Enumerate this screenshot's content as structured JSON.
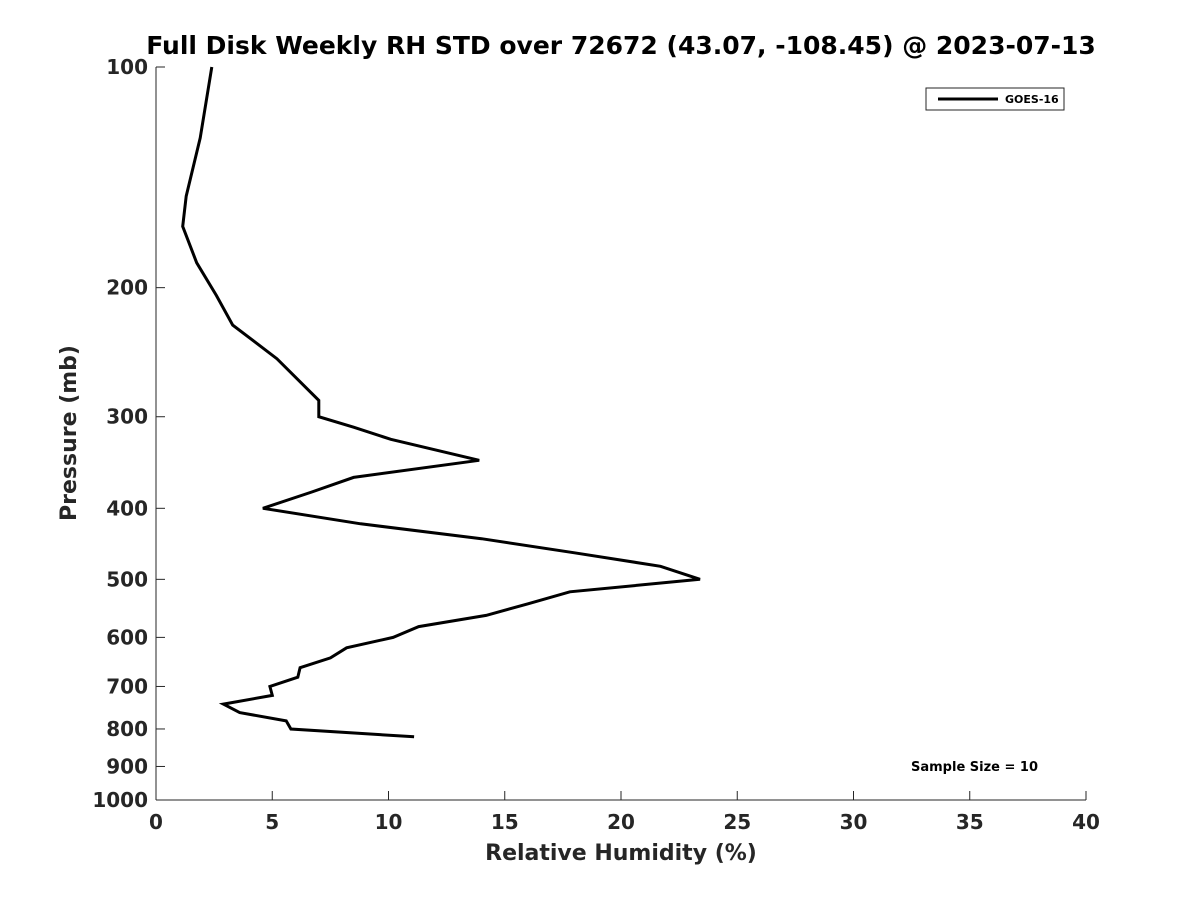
{
  "chart_data": {
    "type": "line",
    "title": "Full Disk Weekly RH STD over 72672 (43.07, -108.45) @ 2023-07-13",
    "xlabel": "Relative Humidity (%)",
    "ylabel": "Pressure (mb)",
    "xlim": [
      0,
      40
    ],
    "ylim": [
      100,
      1000
    ],
    "yscale": "log",
    "y_reversed": true,
    "x_ticks": [
      0,
      5,
      10,
      15,
      20,
      25,
      30,
      35,
      40
    ],
    "y_ticks": [
      100,
      200,
      300,
      400,
      500,
      600,
      700,
      800,
      900,
      1000
    ],
    "legend": {
      "placement": "top-right",
      "entries": [
        "GOES-16"
      ]
    },
    "annotation": "Sample Size = 10",
    "series": [
      {
        "name": "GOES-16",
        "color": "#000000",
        "points": [
          {
            "x": 2.4,
            "p": 100
          },
          {
            "x": 1.9,
            "p": 125
          },
          {
            "x": 1.3,
            "p": 150
          },
          {
            "x": 1.15,
            "p": 165
          },
          {
            "x": 1.75,
            "p": 185
          },
          {
            "x": 2.6,
            "p": 205
          },
          {
            "x": 3.3,
            "p": 225
          },
          {
            "x": 5.2,
            "p": 250
          },
          {
            "x": 7.0,
            "p": 285
          },
          {
            "x": 7.0,
            "p": 300
          },
          {
            "x": 8.5,
            "p": 310
          },
          {
            "x": 10.1,
            "p": 322
          },
          {
            "x": 13.9,
            "p": 344
          },
          {
            "x": 8.5,
            "p": 363
          },
          {
            "x": 6.7,
            "p": 380
          },
          {
            "x": 4.6,
            "p": 400
          },
          {
            "x": 8.8,
            "p": 420
          },
          {
            "x": 14.0,
            "p": 440
          },
          {
            "x": 18.0,
            "p": 460
          },
          {
            "x": 21.7,
            "p": 480
          },
          {
            "x": 23.4,
            "p": 500
          },
          {
            "x": 17.8,
            "p": 520
          },
          {
            "x": 16.0,
            "p": 540
          },
          {
            "x": 14.2,
            "p": 560
          },
          {
            "x": 11.3,
            "p": 580
          },
          {
            "x": 10.2,
            "p": 600
          },
          {
            "x": 8.2,
            "p": 620
          },
          {
            "x": 7.5,
            "p": 640
          },
          {
            "x": 6.2,
            "p": 660
          },
          {
            "x": 6.1,
            "p": 680
          },
          {
            "x": 4.9,
            "p": 700
          },
          {
            "x": 5.0,
            "p": 720
          },
          {
            "x": 2.9,
            "p": 740
          },
          {
            "x": 3.6,
            "p": 760
          },
          {
            "x": 5.6,
            "p": 780
          },
          {
            "x": 5.8,
            "p": 800
          },
          {
            "x": 11.1,
            "p": 820
          }
        ]
      }
    ]
  }
}
